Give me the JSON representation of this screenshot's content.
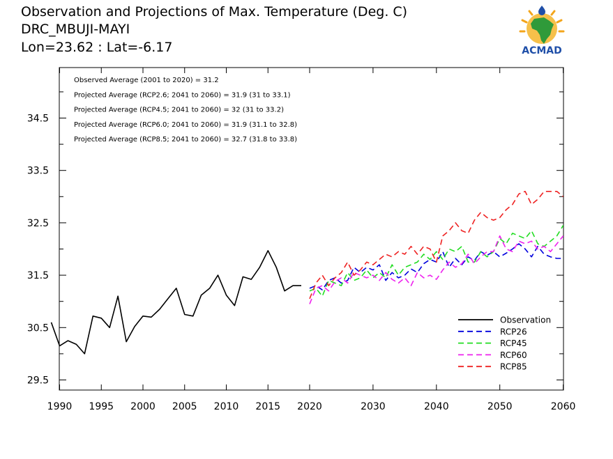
{
  "header": {
    "line1": "Observation and Projections of Max. Temperature (Deg. C)",
    "line2": "DRC_MBUJI-MAYI",
    "line3": "Lon=23.62 : Lat=-6.17"
  },
  "logo": {
    "text": "ACMAD",
    "icon": "africa-map-sun-logo"
  },
  "chart_data": {
    "type": "line",
    "title": "Observation and Projections of Max. Temperature (Deg. C)",
    "xlim": [
      1989,
      2060
    ],
    "ylim": [
      29.3,
      35.3
    ],
    "x_ticks": [
      1990,
      1995,
      2000,
      2005,
      2010,
      2015,
      2020,
      2030,
      2040,
      2050,
      2060
    ],
    "y_ticks": [
      29.5,
      30.5,
      31.5,
      32.5,
      33.5,
      34.5
    ],
    "y_tick_labels": [
      "29.5",
      "30.5",
      "31.5",
      "32.5",
      "33.5",
      "34.5"
    ],
    "grid": false,
    "legend_position": "bottom-right",
    "annotations": [
      "Observed Average (2001 to 2020) = 31.2",
      "Projected Average (RCP2.6; 2041 to 2060) = 31.9 (31 to 33.1)",
      "Projected Average (RCP4.5; 2041 to 2060) = 32 (31 to 33.2)",
      "Projected Average (RCP6.0; 2041 to 2060) = 31.9 (31.1 to 32.8)",
      "Projected Average (RCP8.5; 2041 to 2060) = 32.7 (31.8 to 33.8)"
    ],
    "series": [
      {
        "name": "Observation",
        "color": "#000000",
        "dashed": false,
        "x": [
          1989,
          1990,
          1991,
          1992,
          1993,
          1994,
          1995,
          1996,
          1997,
          1998,
          1999,
          2000,
          2001,
          2002,
          2003,
          2004,
          2005,
          2006,
          2007,
          2008,
          2009,
          2010,
          2011,
          2012,
          2013,
          2014,
          2015,
          2016,
          2017,
          2018,
          2019
        ],
        "values": [
          30.6,
          30.15,
          30.25,
          30.18,
          30.0,
          30.72,
          30.68,
          30.5,
          31.1,
          30.23,
          30.52,
          30.72,
          30.7,
          30.85,
          31.05,
          31.25,
          30.75,
          30.72,
          31.12,
          31.25,
          31.5,
          31.12,
          30.92,
          31.47,
          31.42,
          31.65,
          31.97,
          31.65,
          31.2,
          31.3,
          31.3
        ]
      },
      {
        "name": "RCP26",
        "color": "#0000dd",
        "dashed": true,
        "x": [
          2020,
          2021,
          2022,
          2023,
          2024,
          2025,
          2026,
          2027,
          2028,
          2029,
          2030,
          2031,
          2032,
          2033,
          2034,
          2035,
          2036,
          2037,
          2038,
          2039,
          2040,
          2041,
          2042,
          2043,
          2044,
          2045,
          2046,
          2047,
          2048,
          2049,
          2050,
          2051,
          2052,
          2053,
          2054,
          2055,
          2056,
          2057,
          2058,
          2059,
          2060
        ],
        "values": [
          31.25,
          31.3,
          31.22,
          31.4,
          31.45,
          31.35,
          31.4,
          31.65,
          31.55,
          31.65,
          31.6,
          31.7,
          31.4,
          31.55,
          31.45,
          31.5,
          31.62,
          31.55,
          31.72,
          31.8,
          31.75,
          31.95,
          31.65,
          31.82,
          31.7,
          31.85,
          31.78,
          31.95,
          31.88,
          31.95,
          31.85,
          31.92,
          32.0,
          32.1,
          32.0,
          31.85,
          32.05,
          31.9,
          31.85,
          31.82,
          31.82
        ]
      },
      {
        "name": "RCP45",
        "color": "#22dd22",
        "dashed": true,
        "x": [
          2020,
          2021,
          2022,
          2023,
          2024,
          2025,
          2026,
          2027,
          2028,
          2029,
          2030,
          2031,
          2032,
          2033,
          2034,
          2035,
          2036,
          2037,
          2038,
          2039,
          2040,
          2041,
          2042,
          2043,
          2044,
          2045,
          2046,
          2047,
          2048,
          2049,
          2050,
          2051,
          2052,
          2053,
          2054,
          2055,
          2056,
          2057,
          2058,
          2059,
          2060
        ],
        "values": [
          31.2,
          31.25,
          31.1,
          31.4,
          31.35,
          31.3,
          31.55,
          31.4,
          31.45,
          31.6,
          31.45,
          31.55,
          31.45,
          31.7,
          31.5,
          31.65,
          31.7,
          31.75,
          31.9,
          31.8,
          31.95,
          31.8,
          32.0,
          31.95,
          32.05,
          31.75,
          31.75,
          31.95,
          31.85,
          31.95,
          32.2,
          32.1,
          32.3,
          32.25,
          32.2,
          32.35,
          32.1,
          32.05,
          32.15,
          32.25,
          32.45
        ]
      },
      {
        "name": "RCP60",
        "color": "#ee22ee",
        "dashed": true,
        "x": [
          2020,
          2021,
          2022,
          2023,
          2024,
          2025,
          2026,
          2027,
          2028,
          2029,
          2030,
          2031,
          2032,
          2033,
          2034,
          2035,
          2036,
          2037,
          2038,
          2039,
          2040,
          2041,
          2042,
          2043,
          2044,
          2045,
          2046,
          2047,
          2048,
          2049,
          2050,
          2051,
          2052,
          2053,
          2054,
          2055,
          2056,
          2057,
          2058,
          2059,
          2060
        ],
        "values": [
          30.95,
          31.25,
          31.3,
          31.2,
          31.38,
          31.45,
          31.35,
          31.55,
          31.5,
          31.45,
          31.5,
          31.4,
          31.55,
          31.42,
          31.35,
          31.45,
          31.3,
          31.55,
          31.45,
          31.5,
          31.42,
          31.6,
          31.75,
          31.65,
          31.72,
          31.9,
          31.72,
          31.85,
          31.95,
          31.95,
          32.25,
          32.0,
          31.95,
          32.15,
          32.1,
          32.15,
          32.0,
          32.05,
          31.95,
          32.1,
          32.25
        ]
      },
      {
        "name": "RCP85",
        "color": "#ee2222",
        "dashed": true,
        "x": [
          2020,
          2021,
          2022,
          2023,
          2024,
          2025,
          2026,
          2027,
          2028,
          2029,
          2030,
          2031,
          2032,
          2033,
          2034,
          2035,
          2036,
          2037,
          2038,
          2039,
          2040,
          2041,
          2042,
          2043,
          2044,
          2045,
          2046,
          2047,
          2048,
          2049,
          2050,
          2051,
          2052,
          2053,
          2054,
          2055,
          2056,
          2057,
          2058,
          2059,
          2060
        ],
        "values": [
          31.05,
          31.35,
          31.5,
          31.3,
          31.45,
          31.55,
          31.75,
          31.5,
          31.6,
          31.75,
          31.7,
          31.8,
          31.9,
          31.85,
          31.95,
          31.9,
          32.05,
          31.9,
          32.05,
          32.0,
          31.75,
          32.25,
          32.35,
          32.5,
          32.35,
          32.3,
          32.55,
          32.7,
          32.6,
          32.55,
          32.6,
          32.75,
          32.85,
          33.05,
          33.1,
          32.85,
          32.95,
          33.1,
          33.1,
          33.1,
          33.0
        ]
      }
    ]
  }
}
